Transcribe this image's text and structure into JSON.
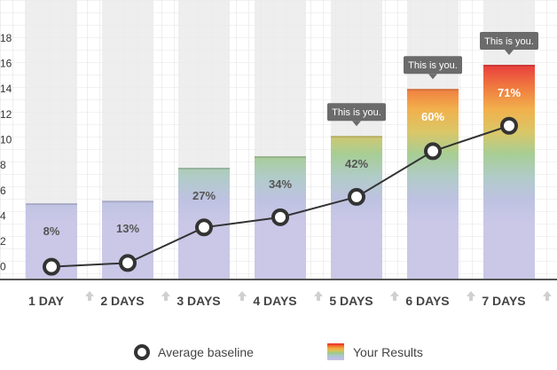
{
  "chart_data": {
    "type": "bar",
    "categories": [
      "1 DAY",
      "2 DAYS",
      "3 DAYS",
      "4 DAYS",
      "5 DAYS",
      "6 DAYS",
      "7 DAYS"
    ],
    "series": [
      {
        "name": "Your Results",
        "values": [
          5,
          5.2,
          7.8,
          8.7,
          10.3,
          14,
          15.9
        ]
      },
      {
        "name": "Average baseline",
        "values": [
          0,
          0.3,
          3.1,
          3.9,
          5.5,
          9.1,
          11.1
        ]
      }
    ],
    "data_labels": [
      "8%",
      "13%",
      "27%",
      "34%",
      "42%",
      "60%",
      "71%"
    ],
    "callouts": [
      {
        "category": "5 DAYS",
        "text": "This is you."
      },
      {
        "category": "6 DAYS",
        "text": "This is you."
      },
      {
        "category": "7 DAYS",
        "text": "This is you."
      }
    ],
    "y_ticks": [
      "0",
      "2",
      "4",
      "6",
      "8",
      "10",
      "12",
      "14",
      "16",
      "18"
    ],
    "ylim": [
      -1,
      21
    ],
    "grid": true,
    "legend_placement": "bottom",
    "gradient_colors": [
      "#e8262a",
      "#f06b2c",
      "#f2a93a",
      "#d9c258",
      "#9fca8a",
      "#a9c8c4",
      "#b9bde0",
      "#c6c3e6"
    ],
    "baseline_color": "#333333",
    "bar_bg_color": "#ebebeb"
  }
}
